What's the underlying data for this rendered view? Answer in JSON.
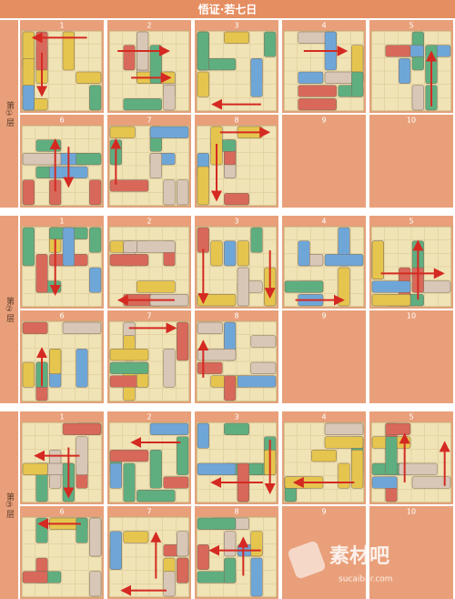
{
  "title": "悟证·若七日",
  "sections": [
    {
      "label": "第①层",
      "steps": [
        "1",
        "2",
        "3",
        "4",
        "5",
        "6",
        "7",
        "8",
        "9",
        "10"
      ]
    },
    {
      "label": "第②层",
      "steps": [
        "1",
        "2",
        "3",
        "4",
        "5",
        "6",
        "7",
        "8",
        "9",
        "10"
      ]
    },
    {
      "label": "第③层",
      "steps": [
        "1",
        "2",
        "3",
        "4",
        "5",
        "6",
        "7",
        "8",
        "9",
        "10"
      ]
    }
  ],
  "watermark": {
    "brand": "素材吧",
    "url": "sucaibar.com"
  }
}
